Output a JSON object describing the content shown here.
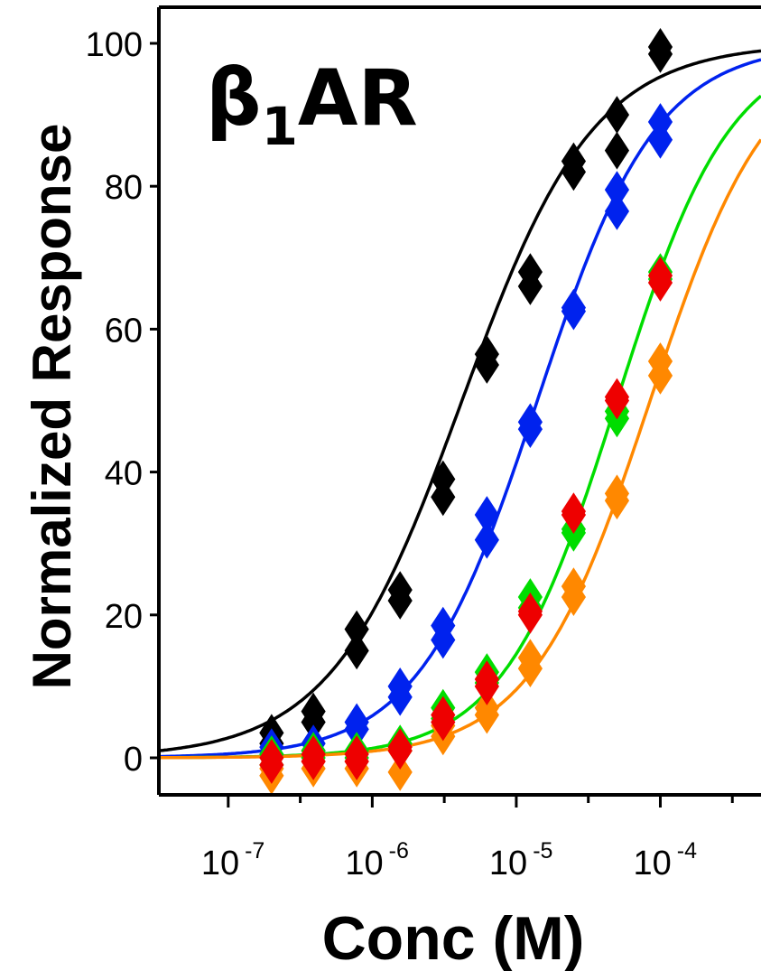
{
  "chart_data": {
    "type": "scatter",
    "title": "β",
    "title_subscript": "1",
    "title_suffix": "AR",
    "xlabel": "Conc (M)",
    "ylabel": "Normalized Response",
    "x_scale": "log",
    "xlim": [
      3.3e-08,
      0.0005
    ],
    "ylim": [
      -5,
      105
    ],
    "y_ticks": [
      0,
      20,
      40,
      60,
      80,
      100
    ],
    "x_ticks": [
      {
        "value": 1e-07,
        "base": "10",
        "exp": "-7"
      },
      {
        "value": 1e-06,
        "base": "10",
        "exp": "-6"
      },
      {
        "value": 1e-05,
        "base": "10",
        "exp": "-5"
      },
      {
        "value": 0.0001,
        "base": "10",
        "exp": "-4"
      }
    ],
    "grid": false,
    "series": [
      {
        "color": "#000000",
        "fit": {
          "ec50": 4.2e-06,
          "hill": 0.95
        },
        "points": [
          [
            2e-07,
            3.5
          ],
          [
            2e-07,
            2.0
          ],
          [
            3.9e-07,
            6.5
          ],
          [
            3.9e-07,
            5.0
          ],
          [
            7.8e-07,
            18.0
          ],
          [
            7.8e-07,
            15.0
          ],
          [
            1.56e-06,
            23.5
          ],
          [
            1.56e-06,
            22.0
          ],
          [
            3.1e-06,
            39.0
          ],
          [
            3.1e-06,
            36.5
          ],
          [
            6.25e-06,
            56.5
          ],
          [
            6.25e-06,
            55.0
          ],
          [
            1.25e-05,
            68.0
          ],
          [
            1.25e-05,
            66.0
          ],
          [
            2.5e-05,
            83.5
          ],
          [
            2.5e-05,
            82.0
          ],
          [
            5e-05,
            90.0
          ],
          [
            5e-05,
            85.0
          ],
          [
            0.0001,
            99.5
          ],
          [
            0.0001,
            98.5
          ]
        ]
      },
      {
        "color": "#0022ee",
        "fit": {
          "ec50": 1.4e-05,
          "hill": 1.05
        },
        "points": [
          [
            2e-07,
            1.5
          ],
          [
            2e-07,
            0.5
          ],
          [
            3.9e-07,
            2.0
          ],
          [
            3.9e-07,
            1.0
          ],
          [
            7.8e-07,
            5.0
          ],
          [
            7.8e-07,
            4.0
          ],
          [
            1.56e-06,
            10.0
          ],
          [
            1.56e-06,
            8.5
          ],
          [
            3.1e-06,
            18.5
          ],
          [
            3.1e-06,
            16.5
          ],
          [
            6.25e-06,
            34.0
          ],
          [
            6.25e-06,
            30.5
          ],
          [
            1.25e-05,
            47.0
          ],
          [
            1.25e-05,
            46.0
          ],
          [
            2.5e-05,
            63.0
          ],
          [
            2.5e-05,
            62.5
          ],
          [
            5e-05,
            79.5
          ],
          [
            5e-05,
            76.5
          ],
          [
            0.0001,
            89.0
          ],
          [
            0.0001,
            86.5
          ]
        ]
      },
      {
        "color": "#00dd00",
        "fit": {
          "ec50": 5e-05,
          "hill": 1.1
        },
        "points": [
          [
            2e-07,
            0.5
          ],
          [
            2e-07,
            -1.0
          ],
          [
            3.9e-07,
            1.0
          ],
          [
            3.9e-07,
            0.0
          ],
          [
            7.8e-07,
            1.0
          ],
          [
            7.8e-07,
            0.0
          ],
          [
            1.56e-06,
            2.0
          ],
          [
            1.56e-06,
            1.0
          ],
          [
            3.1e-06,
            7.0
          ],
          [
            3.1e-06,
            5.5
          ],
          [
            6.25e-06,
            12.0
          ],
          [
            6.25e-06,
            10.5
          ],
          [
            1.25e-05,
            22.5
          ],
          [
            1.25e-05,
            21.0
          ],
          [
            2.5e-05,
            32.0
          ],
          [
            2.5e-05,
            31.5
          ],
          [
            5e-05,
            48.5
          ],
          [
            5e-05,
            47.5
          ],
          [
            0.0001,
            68.0
          ],
          [
            0.0001,
            67.0
          ]
        ]
      },
      {
        "color": "#ff8800",
        "fit": {
          "ec50": 8.5e-05,
          "hill": 1.05
        },
        "points": [
          [
            2e-07,
            -2.5
          ],
          [
            2e-07,
            -1.5
          ],
          [
            3.9e-07,
            -1.5
          ],
          [
            3.9e-07,
            -0.5
          ],
          [
            7.8e-07,
            -1.5
          ],
          [
            7.8e-07,
            -0.5
          ],
          [
            1.56e-06,
            -2.0
          ],
          [
            1.56e-06,
            1.0
          ],
          [
            3.1e-06,
            4.5
          ],
          [
            3.1e-06,
            3.0
          ],
          [
            6.25e-06,
            7.0
          ],
          [
            6.25e-06,
            6.0
          ],
          [
            1.25e-05,
            14.0
          ],
          [
            1.25e-05,
            12.5
          ],
          [
            2.5e-05,
            24.0
          ],
          [
            2.5e-05,
            22.5
          ],
          [
            5e-05,
            37.0
          ],
          [
            5e-05,
            36.0
          ],
          [
            0.0001,
            55.5
          ],
          [
            0.0001,
            53.5
          ]
        ]
      },
      {
        "color": "#ee0000",
        "points": [
          [
            2e-07,
            0.0
          ],
          [
            2e-07,
            -1.0
          ],
          [
            3.9e-07,
            0.5
          ],
          [
            3.9e-07,
            -0.5
          ],
          [
            7.8e-07,
            0.5
          ],
          [
            7.8e-07,
            -0.5
          ],
          [
            1.56e-06,
            1.5
          ],
          [
            1.56e-06,
            1.0
          ],
          [
            3.1e-06,
            6.0
          ],
          [
            3.1e-06,
            5.0
          ],
          [
            6.25e-06,
            11.0
          ],
          [
            6.25e-06,
            10.0
          ],
          [
            1.25e-05,
            20.5
          ],
          [
            1.25e-05,
            20.0
          ],
          [
            2.5e-05,
            34.5
          ],
          [
            2.5e-05,
            34.0
          ],
          [
            5e-05,
            50.5
          ],
          [
            5e-05,
            50.0
          ],
          [
            0.0001,
            67.5
          ],
          [
            0.0001,
            66.5
          ]
        ]
      }
    ]
  }
}
